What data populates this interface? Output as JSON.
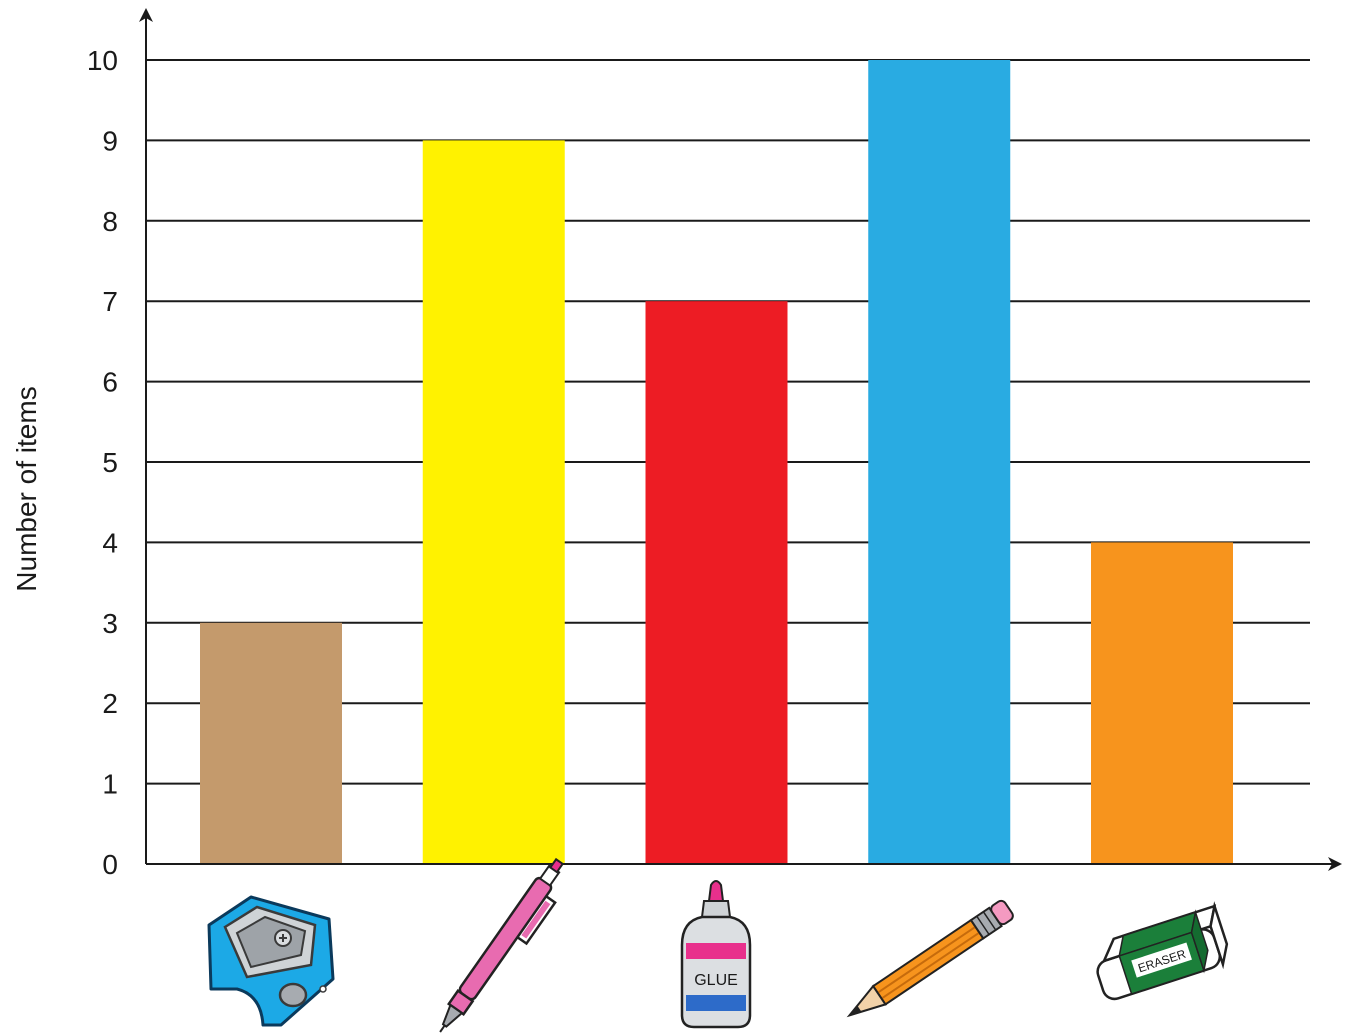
{
  "chart_data": {
    "type": "bar",
    "title": "",
    "xlabel": "",
    "ylabel": "Number of items",
    "ylim": [
      0,
      10
    ],
    "yticks": [
      0,
      1,
      2,
      3,
      4,
      5,
      6,
      7,
      8,
      9,
      10
    ],
    "grid": true,
    "categories": [
      "sharpener",
      "pen",
      "glue",
      "pencil",
      "eraser"
    ],
    "values": [
      3,
      9,
      7,
      10,
      4
    ],
    "colors": [
      "#C49A6C",
      "#FFF200",
      "#ED1C24",
      "#29ABE2",
      "#F7941D"
    ]
  },
  "icons": [
    {
      "name": "sharpener-icon"
    },
    {
      "name": "pen-icon"
    },
    {
      "name": "glue-bottle-icon",
      "label": "GLUE"
    },
    {
      "name": "pencil-icon"
    },
    {
      "name": "eraser-icon",
      "label": "ERASER"
    }
  ]
}
